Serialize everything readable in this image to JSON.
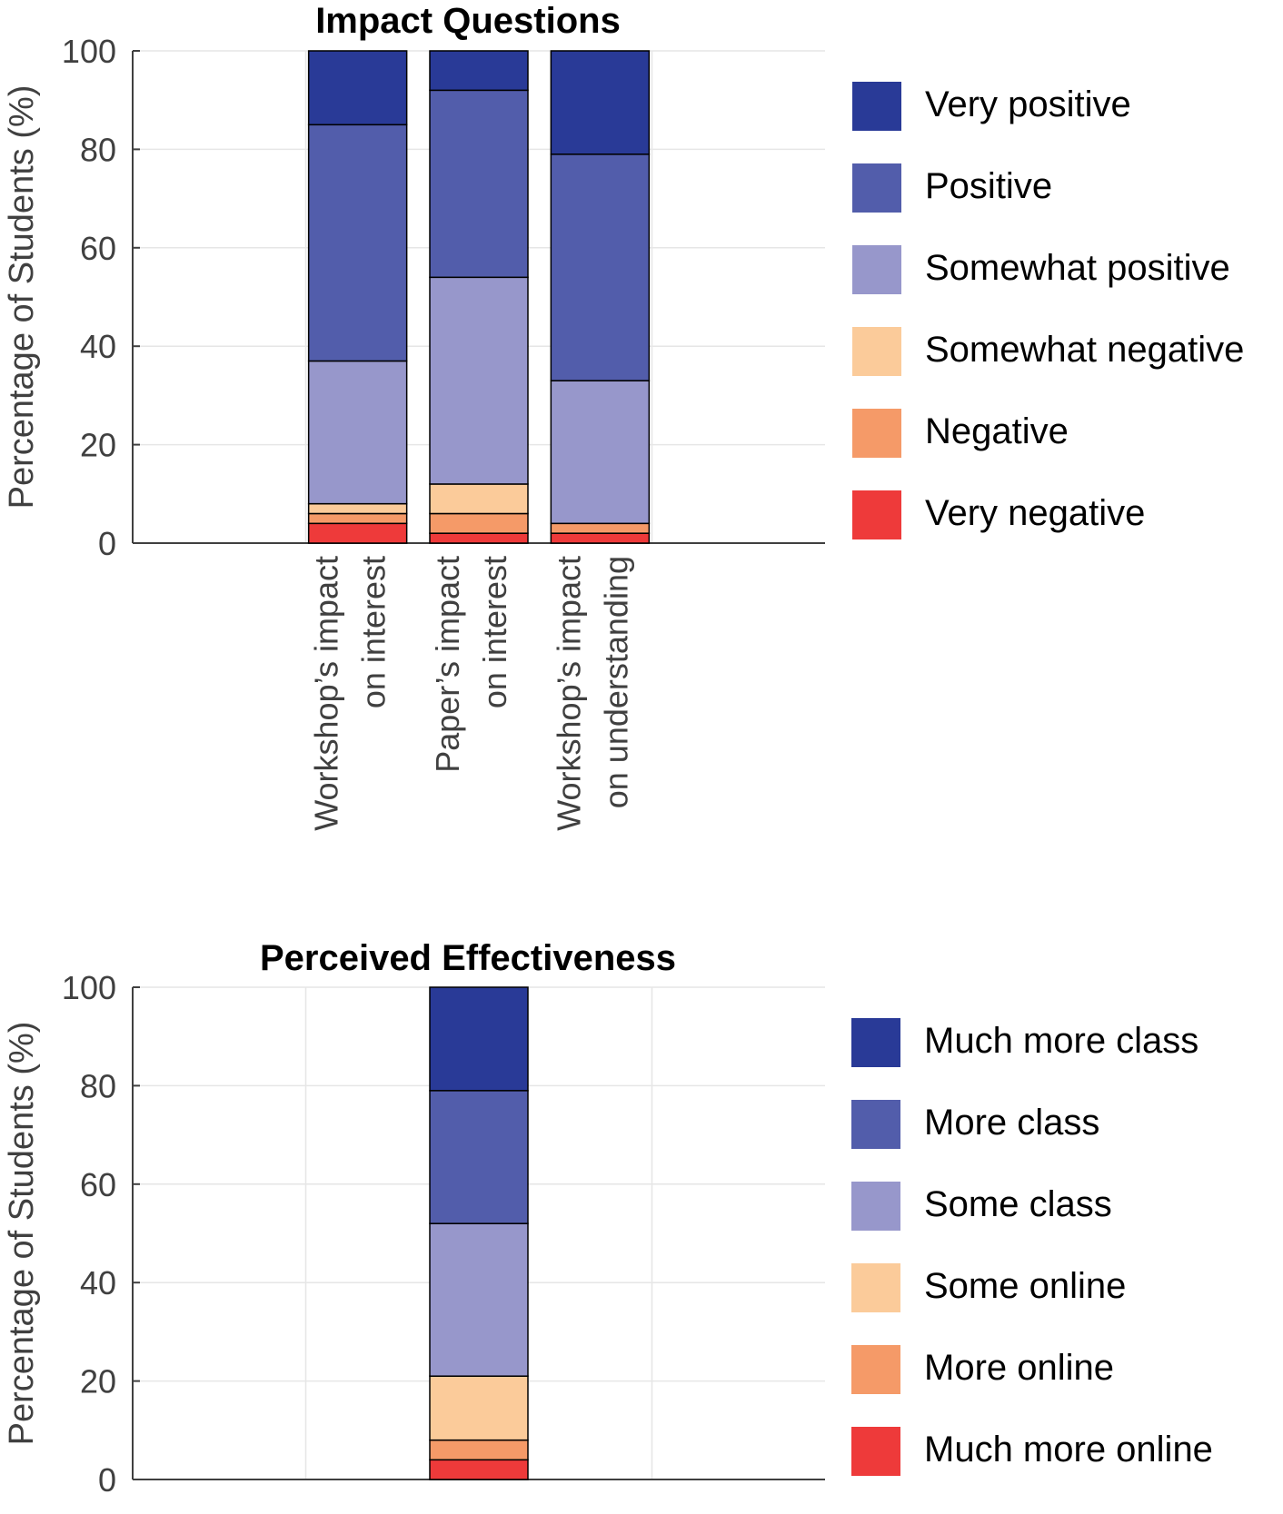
{
  "chart_data": [
    {
      "type": "bar",
      "stacked": true,
      "title": "Impact Questions",
      "ylabel": "Percentage of Students (%)",
      "ylim": [
        0,
        100
      ],
      "yticks": [
        "0",
        "20",
        "40",
        "60",
        "80",
        "100"
      ],
      "grid": true,
      "legend_position": "right",
      "categories": [
        [
          "Workshop’s impact",
          "on interest"
        ],
        [
          "Paper’s impact",
          "on interest"
        ],
        [
          "Workshop’s impact",
          "on understanding"
        ]
      ],
      "series": [
        {
          "name": "Very negative",
          "color": "#ee3a3a",
          "values": [
            4,
            2,
            2
          ]
        },
        {
          "name": "Negative",
          "color": "#f59a68",
          "values": [
            2,
            4,
            2
          ]
        },
        {
          "name": "Somewhat negative",
          "color": "#fbcb9a",
          "values": [
            2,
            6,
            0
          ]
        },
        {
          "name": "Somewhat positive",
          "color": "#9797cb",
          "values": [
            29,
            42,
            29
          ]
        },
        {
          "name": "Positive",
          "color": "#525dab",
          "values": [
            48,
            38,
            46
          ]
        },
        {
          "name": "Very positive",
          "color": "#293a97",
          "values": [
            15,
            8,
            21
          ]
        }
      ]
    },
    {
      "type": "bar",
      "stacked": true,
      "title": "Perceived Effectiveness",
      "ylabel": "Percentage of Students (%)",
      "ylim": [
        0,
        100
      ],
      "yticks": [
        "0",
        "20",
        "40",
        "60",
        "80",
        "100"
      ],
      "grid": true,
      "legend_position": "right",
      "categories": [
        ""
      ],
      "series": [
        {
          "name": "Much more online",
          "color": "#ee3a3a",
          "values": [
            4
          ]
        },
        {
          "name": "More online",
          "color": "#f59a68",
          "values": [
            4
          ]
        },
        {
          "name": "Some online",
          "color": "#fbcb9a",
          "values": [
            13
          ]
        },
        {
          "name": "Some class",
          "color": "#9797cb",
          "values": [
            31
          ]
        },
        {
          "name": "More class",
          "color": "#525dab",
          "values": [
            27
          ]
        },
        {
          "name": "Much more class",
          "color": "#293a97",
          "values": [
            21
          ]
        }
      ]
    }
  ]
}
